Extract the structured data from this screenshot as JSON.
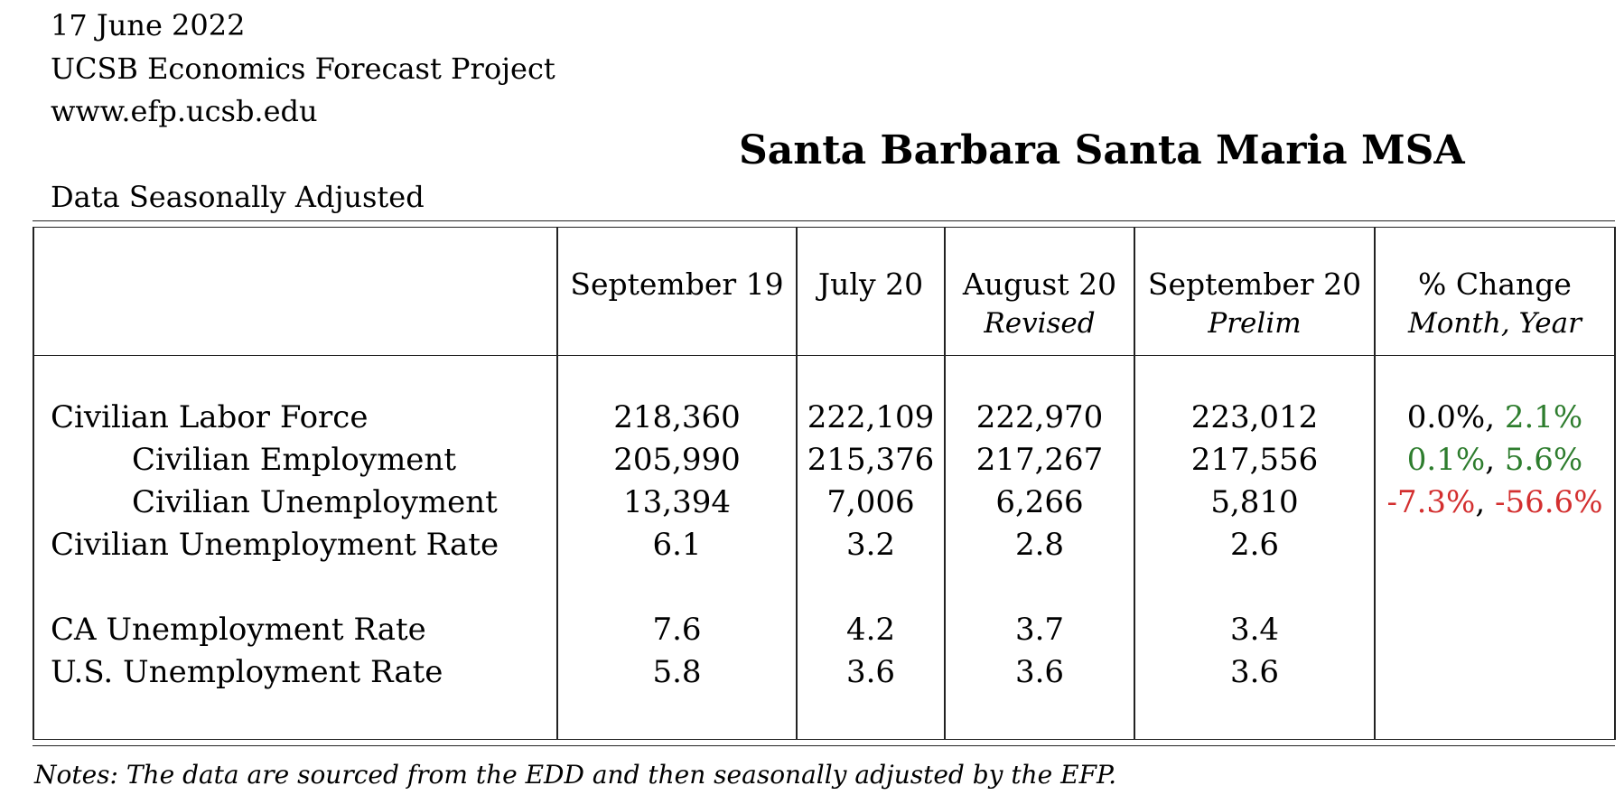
{
  "header": {
    "date": "17 June 2022",
    "organization": "UCSB Economics Forecast Project",
    "website": "www.efp.ucsb.edu"
  },
  "title": "Santa Barbara Santa Maria MSA",
  "subtitle": "Data Seasonally Adjusted",
  "table": {
    "columns": [
      {
        "label": "September 19",
        "sub": ""
      },
      {
        "label": "July 20",
        "sub": ""
      },
      {
        "label": "August 20",
        "sub": "Revised"
      },
      {
        "label": "September 20",
        "sub": "Prelim"
      },
      {
        "label": "% Change",
        "sub": "Month, Year"
      }
    ],
    "rows": [
      {
        "label": "Civilian Labor Force",
        "values": [
          "218,360",
          "222,109",
          "222,970",
          "223,012"
        ],
        "month_change": "0.0%",
        "year_change": "2.1%",
        "month_sign": "zero",
        "year_sign": "pos"
      },
      {
        "label": "Civilian Employment",
        "values": [
          "205,990",
          "215,376",
          "217,267",
          "217,556"
        ],
        "month_change": "0.1%",
        "year_change": "5.6%",
        "month_sign": "pos",
        "year_sign": "pos"
      },
      {
        "label": "Civilian Unemployment",
        "values": [
          "13,394",
          "7,006",
          "6,266",
          "5,810"
        ],
        "month_change": "-7.3%",
        "year_change": "-56.6%",
        "month_sign": "neg",
        "year_sign": "neg"
      },
      {
        "label": "Civilian Unemployment Rate",
        "values": [
          "6.1",
          "3.2",
          "2.8",
          "2.6"
        ],
        "month_change": "",
        "year_change": "",
        "month_sign": "",
        "year_sign": ""
      },
      {
        "label": "CA Unemployment Rate",
        "values": [
          "7.6",
          "4.2",
          "3.7",
          "3.4"
        ],
        "month_change": "",
        "year_change": "",
        "month_sign": "",
        "year_sign": ""
      },
      {
        "label": "U.S. Unemployment Rate",
        "values": [
          "5.8",
          "3.6",
          "3.6",
          "3.6"
        ],
        "month_change": "",
        "year_change": "",
        "month_sign": "",
        "year_sign": ""
      }
    ],
    "separator": ", "
  },
  "notes": "Notes: The data are sourced from the EDD and then seasonally adjusted by the EFP.",
  "colors": {
    "positive": "#2e7d2e",
    "negative": "#d32f2f"
  }
}
